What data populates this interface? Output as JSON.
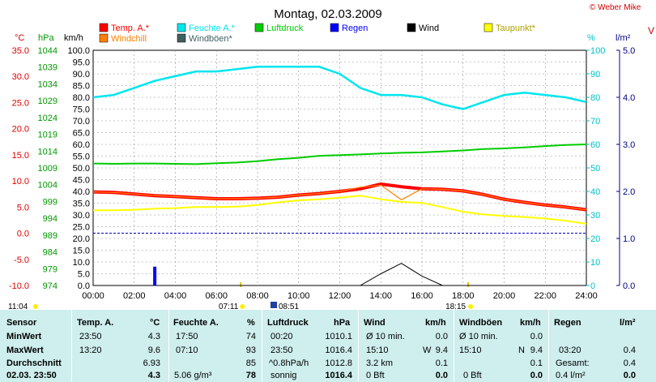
{
  "header": {
    "title": "Montag, 02.03.2009",
    "copyright": "© Weber Mike",
    "right_cut": "V"
  },
  "legend": [
    {
      "label": "Temp. A.*",
      "color": "#ff0000"
    },
    {
      "label": "Feuchte A.*",
      "color": "#00e5ee"
    },
    {
      "label": "Luftdruck",
      "color": "#00cc00"
    },
    {
      "label": "Regen",
      "color": "#0000ff"
    },
    {
      "label": "Wind",
      "color": "#000000"
    },
    {
      "label": "Taupunkt*",
      "color": "#ffff00"
    },
    {
      "label": "Windchill",
      "color": "#ff8000"
    },
    {
      "label": "Windböen*",
      "color": "#406060"
    }
  ],
  "axes": {
    "unit_c": "°C",
    "unit_hpa": "hPa",
    "unit_kmh": "km/h",
    "unit_pct": "%",
    "unit_lm2": "l/m²",
    "celsius": [
      "35.0",
      "30.0",
      "25.0",
      "20.0",
      "15.0",
      "10.0",
      "5.0",
      "0.0",
      "-5.0",
      "-10.0"
    ],
    "hpa": [
      "1044",
      "1039",
      "1034",
      "1029",
      "1024",
      "1019",
      "1014",
      "1009",
      "1004",
      "999",
      "994",
      "989",
      "984",
      "979",
      "974"
    ],
    "kmh": [
      "100.0",
      "95.0",
      "90.0",
      "85.0",
      "80.0",
      "75.0",
      "70.0",
      "65.0",
      "60.0",
      "55.0",
      "50.0",
      "45.0",
      "40.0",
      "35.0",
      "30.0",
      "25.0",
      "20.0",
      "15.0",
      "10.0",
      "5.0",
      "0.0"
    ],
    "percent": [
      "100",
      "90",
      "80",
      "70",
      "60",
      "50",
      "40",
      "30",
      "20",
      "10",
      "0"
    ],
    "rain": [
      "5.0",
      "4.0",
      "3.0",
      "2.0",
      "1.0",
      "0.0"
    ],
    "time": [
      "00:00",
      "02:00",
      "04:00",
      "06:00",
      "08:00",
      "10:00",
      "12:00",
      "14:00",
      "16:00",
      "18:00",
      "20:00",
      "22:00",
      "24:00"
    ]
  },
  "sun": {
    "sunrise": "07:11",
    "sunset": "18:15",
    "moonrise": "11:04",
    "moon": "08:51"
  },
  "chart_data": {
    "type": "line",
    "title": "Montag, 02.03.2009",
    "x_label": "",
    "x": [
      "00:00",
      "01:00",
      "02:00",
      "03:00",
      "04:00",
      "05:00",
      "06:00",
      "07:00",
      "08:00",
      "09:00",
      "10:00",
      "11:00",
      "12:00",
      "13:00",
      "14:00",
      "15:00",
      "16:00",
      "17:00",
      "18:00",
      "19:00",
      "20:00",
      "21:00",
      "22:00",
      "23:00",
      "24:00"
    ],
    "series": [
      {
        "name": "Temp. A.*",
        "color": "#ff0000",
        "axis": "celsius",
        "values": [
          7.9,
          7.8,
          7.5,
          7.2,
          7.0,
          6.8,
          6.6,
          6.6,
          6.7,
          6.9,
          7.3,
          7.6,
          8.0,
          8.5,
          9.4,
          8.9,
          8.5,
          8.4,
          8.1,
          7.4,
          6.5,
          5.9,
          5.4,
          5.0,
          4.5
        ]
      },
      {
        "name": "Feuchte A.*",
        "color": "#00e5ee",
        "axis": "percent",
        "values": [
          80,
          81,
          84,
          87,
          89,
          91,
          91,
          92,
          93,
          93,
          93,
          93,
          90,
          84,
          81,
          81,
          80,
          77,
          75,
          78,
          81,
          82,
          81,
          80,
          78
        ]
      },
      {
        "name": "Luftdruck",
        "color": "#00cc00",
        "axis": "hpa",
        "values": [
          1010.3,
          1010.2,
          1010.3,
          1010.3,
          1010.2,
          1010.1,
          1010.4,
          1010.6,
          1011.0,
          1011.6,
          1012.0,
          1012.6,
          1012.8,
          1013.0,
          1013.3,
          1013.5,
          1013.6,
          1013.9,
          1014.2,
          1014.6,
          1014.8,
          1015.1,
          1015.5,
          1015.8,
          1016.0
        ]
      },
      {
        "name": "Taupunkt*",
        "color": "#ffff00",
        "axis": "celsius",
        "values": [
          4.4,
          4.4,
          4.5,
          4.7,
          4.8,
          5.0,
          5.0,
          5.1,
          5.4,
          5.9,
          6.3,
          6.5,
          6.8,
          7.2,
          6.5,
          6.0,
          5.8,
          5.0,
          4.1,
          3.6,
          3.3,
          3.1,
          2.8,
          2.4,
          1.8
        ]
      },
      {
        "name": "Windchill",
        "color": "#ff8000",
        "axis": "celsius",
        "values": [
          7.9,
          7.8,
          7.5,
          7.2,
          7.0,
          6.8,
          6.6,
          6.6,
          6.7,
          6.9,
          7.3,
          7.6,
          8.0,
          8.8,
          9.2,
          6.4,
          8.5,
          8.4,
          8.1,
          7.4,
          6.5,
          5.9,
          5.4,
          5.0,
          4.5
        ]
      },
      {
        "name": "Wind",
        "color": "#000000",
        "axis": "kmh",
        "values": [
          0,
          0,
          0,
          0,
          0,
          0,
          0,
          0,
          0,
          0,
          0,
          0,
          0,
          0,
          5.0,
          9.4,
          4.0,
          0,
          0,
          0,
          0,
          0,
          0,
          0,
          0
        ]
      },
      {
        "name": "Regen",
        "color": "#0000ff",
        "axis": "rain",
        "values": [
          0,
          0,
          0,
          0.4,
          0,
          0,
          0,
          0,
          0,
          0,
          0,
          0,
          0,
          0,
          0,
          0,
          0,
          0,
          0,
          0,
          0,
          0,
          0,
          0,
          0
        ]
      }
    ],
    "ylim_celsius": [
      -10,
      35
    ],
    "ylim_hpa": [
      974,
      1044
    ],
    "ylim_kmh": [
      0,
      100
    ],
    "ylim_percent": [
      0,
      100
    ],
    "ylim_rain": [
      0,
      5
    ],
    "grid": true
  },
  "table": {
    "headers": [
      "Sensor",
      "Temp. A.",
      "°C",
      "Feuchte A.",
      "%",
      "Luftdruck",
      "hPa",
      "Wind",
      "km/h",
      "Windböen",
      "km/h",
      "Regen",
      "l/m²"
    ],
    "rows": [
      {
        "label": "MinWert",
        "temp_t": "23:50",
        "temp_v": "4.3",
        "hum_t": "17:50",
        "hum_v": "74",
        "p_t": "00:20",
        "p_v": "1010.1",
        "w_t": "Ø 10 min.",
        "w_v": "0.0",
        "g_t": "Ø 10 min.",
        "g_v": "0.0",
        "r_t": "",
        "r_v": ""
      },
      {
        "label": "MaxWert",
        "temp_t": "13:20",
        "temp_v": "9.6",
        "hum_t": "07:10",
        "hum_v": "93",
        "p_t": "23:50",
        "p_v": "1016.4",
        "w_t": "15:10",
        "w_dir": "W",
        "w_v": "9.4",
        "g_t": "15:10",
        "g_dir": "N",
        "g_v": "9.4",
        "r_t": "03:20",
        "r_v": "0.4"
      },
      {
        "label": "Durchschnitt",
        "temp_t": "",
        "temp_v": "6.93",
        "hum_t": "",
        "hum_v": "85",
        "p_t": "^0.8hPa/h",
        "p_v": "1012.8",
        "w_t": "3.2 km",
        "w_v": "0.1",
        "g_t": "",
        "g_v": "0.1",
        "r_t": "Gesamt:",
        "r_v": "0.4"
      },
      {
        "label": "02.03. 23:50",
        "temp_t": "",
        "temp_v": "4.3",
        "hum_t": "5.06 g/m³",
        "hum_v": "78",
        "p_t": "sonnig",
        "p_v": "1016.4",
        "w_t": "0 Bft",
        "w_v": "0.0",
        "g_t": "0 Bft",
        "g_v": "0.0",
        "r_t": "0.4 l/m²",
        "r_v": "0.0"
      }
    ]
  }
}
